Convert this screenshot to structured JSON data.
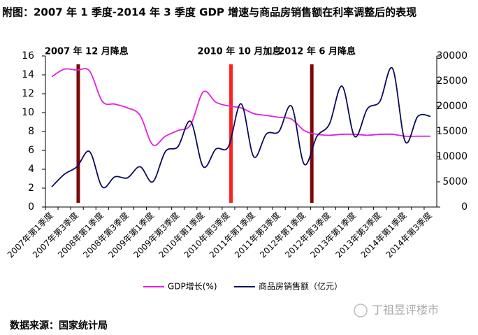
{
  "chart_data": {
    "type": "line",
    "title": "附图：2007 年 1 季度-2014 年 3 季度 GDP 增速与商品房销售额在利率调整后的表现",
    "categories": [
      "2007年第1季度",
      null,
      "2007年第3季度",
      null,
      "2008年第1季度",
      null,
      "2008年第3季度",
      null,
      "2009年第1季度",
      null,
      "2009年第3季度",
      null,
      "2010年第1季度",
      null,
      "2010年第3季度",
      null,
      "2011年第1季度",
      null,
      "2011年第3季度",
      null,
      "2012年第1季度",
      null,
      "2012年第3季度",
      null,
      "2013年第1季度",
      null,
      "2013年第3季度",
      null,
      "2014年第1季度",
      null,
      "2014年第3季度"
    ],
    "series": [
      {
        "name": "GDP增长(%)",
        "color": "#e020e0",
        "values": [
          13.8,
          14.6,
          14.5,
          14.4,
          11.2,
          10.9,
          10.5,
          9.7,
          6.6,
          7.5,
          8.1,
          8.7,
          12.2,
          11.1,
          10.7,
          10.5,
          9.9,
          9.7,
          9.5,
          9.3,
          8.1,
          7.7,
          7.6,
          7.7,
          7.7,
          7.6,
          7.7,
          7.7,
          7.5,
          7.5,
          7.5
        ]
      },
      {
        "name": "商品房销售额（亿元）",
        "color": "#0a0a60",
        "axis": "y2",
        "values": [
          4000,
          6500,
          8000,
          11000,
          4000,
          6000,
          5800,
          8000,
          5000,
          11000,
          12000,
          17000,
          8000,
          11500,
          12000,
          20500,
          10000,
          14500,
          15000,
          20000,
          8500,
          14000,
          16500,
          24000,
          14000,
          19500,
          21000,
          27500,
          13000,
          18000,
          18000
        ]
      }
    ],
    "ylim": [
      0,
      16
    ],
    "yticks": [
      0,
      2,
      4,
      6,
      8,
      10,
      12,
      14,
      16
    ],
    "y2lim": [
      0,
      30000
    ],
    "y2ticks": [
      0,
      5000,
      10000,
      15000,
      20000,
      25000,
      30000
    ],
    "legend": "bottom",
    "annotations": [
      {
        "text": "2007 年 12 月降息",
        "color": "#7a0a0a"
      },
      {
        "text": "2010 年 10 月加息",
        "color": "#ff2020"
      },
      {
        "text": "2012 年 6 月降息",
        "color": "#7a0a0a"
      }
    ],
    "source": "数据来源：国家统计局",
    "watermark": "丁祖昱评楼市"
  }
}
